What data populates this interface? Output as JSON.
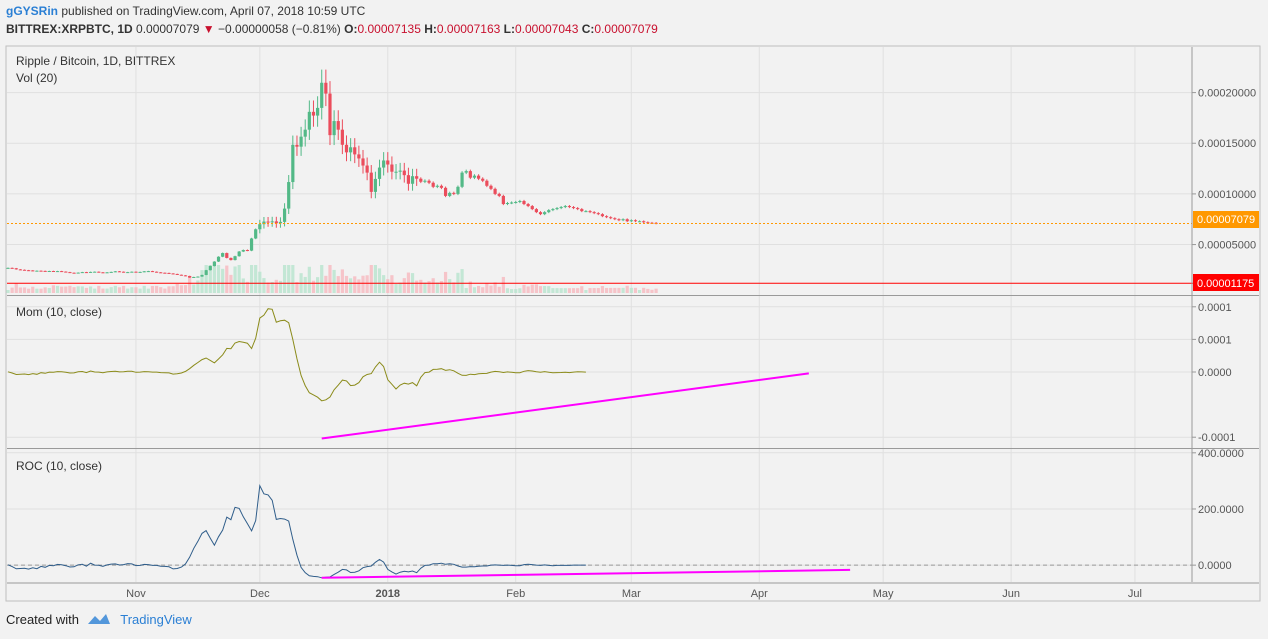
{
  "header": {
    "user": "gGYSRin",
    "published": "published on TradingView.com, April 07, 2018 10:59 UTC",
    "symbol": "BITTREX:XRPBTC, 1D",
    "last": "0.00007079",
    "change_arrow": "▼",
    "change": "−0.00000058 (−0.81%)",
    "o_label": "O:",
    "o": "0.00007135",
    "h_label": "H:",
    "h": "0.00007163",
    "l_label": "L:",
    "l": "0.00007043",
    "c_label": "C:",
    "c": "0.00007079"
  },
  "panes": {
    "main_title": "Ripple / Bitcoin, 1D, BITTREX",
    "vol_title": "Vol (20)",
    "mom_title": "Mom (10, close)",
    "roc_title": "ROC (10, close)"
  },
  "badges": {
    "last_price": "0.00007079",
    "hline": "0.00001175"
  },
  "footer": {
    "created": "Created with",
    "brand": "TradingView"
  },
  "colors": {
    "up": "#53b987",
    "down": "#eb4d5c",
    "mom": "#8b8b1a",
    "roc": "#2f5d8a",
    "trend": "#ff00ff",
    "last_line": "#ff9800",
    "hline": "#ff0000"
  },
  "chart_data": [
    {
      "type": "candlestick",
      "title": "Ripple / Bitcoin, 1D, BITTREX",
      "y_ticks": [
        "0.00005000",
        "0.00010000",
        "0.00015000",
        "0.00020000"
      ],
      "x_ticks": [
        "Nov",
        "Dec",
        "2018",
        "Feb",
        "Mar",
        "Apr",
        "May",
        "Jun",
        "Jul"
      ],
      "ylim": [
        1.2e-06,
        0.000245
      ],
      "last_price": 7.079e-05,
      "hline": 1.175e-05,
      "x_start": "2017-10-01",
      "close": [
        2.7e-05,
        2.66e-05,
        2.55e-05,
        2.51e-05,
        2.47e-05,
        2.45e-05,
        2.4e-05,
        2.42e-05,
        2.4e-05,
        2.36e-05,
        2.39e-05,
        2.32e-05,
        2.38e-05,
        2.33e-05,
        2.28e-05,
        2.22e-05,
        2.18e-05,
        2.23e-05,
        2.28e-05,
        2.25e-05,
        2.3e-05,
        2.32e-05,
        2.26e-05,
        2.24e-05,
        2.26e-05,
        2.3e-05,
        2.36e-05,
        2.32e-05,
        2.26e-05,
        2.28e-05,
        2.32e-05,
        2.28e-05,
        2.3e-05,
        2.36e-05,
        2.38e-05,
        2.32e-05,
        2.26e-05,
        2.22e-05,
        2.2e-05,
        2.15e-05,
        2.1e-05,
        2.02e-05,
        1.96e-05,
        1.9e-05,
        1.74e-05,
        1.8e-05,
        1.84e-05,
        2e-05,
        2.47e-05,
        2.88e-05,
        3.32e-05,
        3.8e-05,
        4.16e-05,
        3.68e-05,
        3.47e-05,
        3.85e-05,
        4.31e-05,
        4.46e-05,
        4.4e-05,
        5.6e-05,
        6.51e-05,
        7.01e-05,
        7.27e-05,
        7.2e-05,
        7.29e-05,
        7.1e-05,
        7.24e-05,
        8.55e-05,
        0.0001117,
        0.0001484,
        0.0001466,
        0.0001565,
        0.0001634,
        0.000181,
        0.0001773,
        0.0001849,
        0.0002097,
        0.000199,
        0.000158,
        0.0001719,
        0.0001634,
        0.0001485,
        0.000141,
        0.000146,
        0.000139,
        0.000135,
        0.000128,
        0.000121,
        0.000102,
        0.0001148,
        0.000126,
        0.000133,
        0.000129,
        0.0001219,
        0.0001219,
        0.000123,
        0.0001185,
        0.00011,
        0.0001175,
        0.000115,
        0.000112,
        0.000113,
        0.000111,
        0.000107,
        0.000108,
        0.000106,
        9.8e-05,
        0.000101,
        0.0001,
        0.000107,
        0.000121,
        0.0001225,
        0.000116,
        0.000118,
        0.000115,
        0.000113,
        0.000108,
        0.000105,
        0.0001,
        9.8e-05,
        9e-05,
        9.1e-05,
        9.15e-05,
        9.2e-05,
        9.3e-05,
        9e-05,
        8.8e-05,
        8.5e-05,
        8.2e-05,
        8e-05,
        8.2e-05,
        8.4e-05,
        8.5e-05,
        8.6e-05,
        8.7e-05,
        8.8e-05,
        8.7e-05,
        8.6e-05,
        8.5e-05,
        8.3e-05,
        8.3e-05,
        8.2e-05,
        8.1e-05,
        8e-05,
        7.8e-05,
        7.7e-05,
        7.6e-05,
        7.5e-05,
        7.4e-05,
        7.5e-05,
        7.3e-05,
        7.4e-05,
        7.3e-05,
        7.3e-05,
        7.2e-05,
        7.15e-05,
        7.14e-05,
        7.08e-05
      ]
    },
    {
      "type": "line",
      "title": "Mom (10, close)",
      "y_ticks": [
        "-0.0001",
        "0.0000",
        "0.0001",
        "0.0001"
      ],
      "ylim": [
        -0.000115,
        0.000115
      ],
      "values": [
        3e-07,
        -1.5e-06,
        -3.8e-06,
        -3.4e-06,
        -3e-06,
        -4e-06,
        -2.5e-06,
        -3.5e-06,
        -1.1e-06,
        -2e-06,
        -2e-07,
        -5e-07,
        6e-07,
        3e-07,
        -5e-07,
        -1.6e-06,
        -1.4e-06,
        3e-07,
        7e-07,
        -9e-07,
        1.6e-06,
        0.0,
        -1e-07,
        -1e-06,
        2e-07,
        8e-07,
        1e-06,
        1e-07,
        4e-07,
        1.2e-06,
        1e-06,
        -4e-07,
        -2e-07,
        6e-07,
        4e-07,
        -2e-07,
        -2e-07,
        -9e-07,
        -1e-06,
        -1.4e-06,
        -3.2e-06,
        -2.7e-06,
        -1.5e-06,
        9e-07,
        5.1e-06,
        1.03e-05,
        1.46e-05,
        1.9e-05,
        2.14e-05,
        1.78e-05,
        1.4e-05,
        2e-05,
        2.63e-05,
        3.62e-05,
        3.57e-05,
        4.45e-05,
        4.68e-05,
        4.56e-05,
        4.42e-05,
        3.6e-05,
        5.19e-05,
        8.26e-05,
        8.72e-05,
        9.7e-05,
        9.62e-05,
        7.63e-05,
        7.85e-05,
        7.94e-05,
        7.56e-05,
        5e-05,
        2.01e-05,
        -5.3e-06,
        -2.09e-05,
        -3.18e-05,
        -3.51e-05,
        -3.86e-05,
        -4.42e-05,
        -4.27e-05,
        -3.84e-05,
        -2.73e-05,
        -2.03e-05,
        -1.24e-05,
        -1.36e-05,
        -2.09e-05,
        -2.01e-05,
        -1.63e-05,
        -7.3e-06,
        -3.9e-06,
        -2.4e-06,
        7.6e-06,
        1.51e-05,
        8.5e-06,
        -1.19e-05,
        -1.89e-05,
        -2.6e-05,
        -2e-05,
        -1.71e-05,
        -1.85e-05,
        -1.63e-05,
        -2.11e-05,
        -8.1e-06,
        -9e-07,
        -1e-07,
        4e-06,
        4.1e-06,
        5e-06,
        2.4e-06,
        3.6e-06,
        1.9e-06,
        -2e-06,
        -5e-06,
        -5.2e-06,
        -3.4e-06,
        -4e-06,
        -2.8e-06,
        -2.3e-06,
        -2.2e-06,
        -1e-07,
        9e-07,
        3e-07,
        -8e-07,
        2e-07,
        -4e-07,
        -1.1e-06,
        -1.1e-06,
        1.1e-06,
        2.1e-06,
        1.5e-06,
        3e-07,
        -4e-07,
        6e-07,
        -5e-07,
        -1.1e-06,
        -9e-07,
        -7e-07,
        -4e-07,
        -9e-07,
        -2e-07,
        3e-07,
        1e-07,
        -1e-07
      ]
    },
    {
      "type": "line",
      "title": "ROC (10, close)",
      "y_ticks": [
        "0.0000",
        "200.0000",
        "400.0000"
      ],
      "ylim": [
        -60,
        410
      ],
      "values": [
        1.2,
        -5.2,
        -12.9,
        -11.9,
        -10.8,
        -14.1,
        -9.4,
        -12.6,
        -4.3,
        -7.8,
        -1,
        -2,
        2.6,
        1.3,
        -2.1,
        -6.5,
        -5.8,
        1.3,
        3,
        -3.8,
        7.1,
        0,
        -0.5,
        -4.3,
        0.9,
        3.6,
        4.5,
        0.5,
        1.8,
        5.6,
        4.5,
        -1.7,
        -0.9,
        2.7,
        1.8,
        -0.9,
        -0.9,
        -3.9,
        -4.3,
        -5.9,
        -13.3,
        -11.9,
        -7,
        4.3,
        28,
        60,
        85,
        113,
        123,
        96,
        71,
        101,
        125,
        171,
        162,
        206,
        202,
        172,
        148,
        122,
        159,
        283,
        254,
        250,
        231,
        163,
        166,
        164,
        157,
        92,
        35,
        -8,
        -27,
        -38,
        -40,
        -41,
        -45,
        -43,
        -42,
        -33,
        -25,
        -15,
        -17,
        -26,
        -25,
        -20,
        -9,
        -5,
        -3,
        10,
        20,
        11,
        -15,
        -24,
        -32,
        -25,
        -22,
        -24,
        -21,
        -27,
        -11,
        -1,
        0,
        5,
        5,
        7,
        3,
        5,
        3,
        -3,
        -7,
        -7,
        -5,
        -6,
        -4,
        -3,
        -3,
        0,
        1,
        0,
        -1,
        0,
        -1,
        -2,
        -2,
        2,
        3,
        2,
        0,
        -1,
        1,
        -1,
        -2,
        -1,
        -1,
        -1,
        -1,
        0,
        0,
        0,
        0
      ]
    }
  ]
}
